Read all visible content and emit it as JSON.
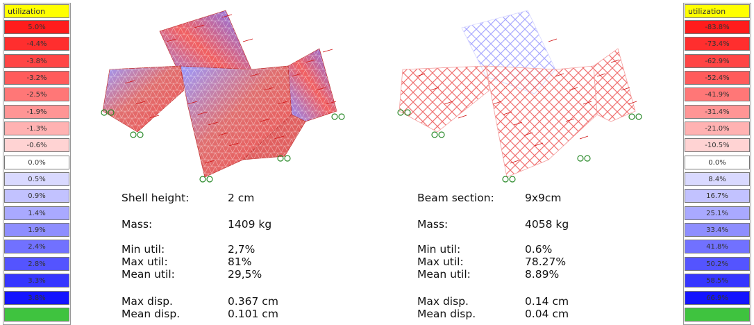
{
  "legend_left": {
    "title": "utilization",
    "cells": [
      {
        "label": "5.0%",
        "color": "#ff1c1c"
      },
      {
        "label": "-4.4%",
        "color": "#ff2e2e"
      },
      {
        "label": "-3.8%",
        "color": "#ff4545"
      },
      {
        "label": "-3.2%",
        "color": "#ff5b5b"
      },
      {
        "label": "-2.5%",
        "color": "#ff7777"
      },
      {
        "label": "-1.9%",
        "color": "#ff9595"
      },
      {
        "label": "-1.3%",
        "color": "#ffb2b2"
      },
      {
        "label": "-0.6%",
        "color": "#ffd3d3"
      },
      {
        "label": "0.0%",
        "color": "#ffffff"
      },
      {
        "label": "0.5%",
        "color": "#d9d9ff"
      },
      {
        "label": "0.9%",
        "color": "#c2c2ff"
      },
      {
        "label": "1.4%",
        "color": "#a9a9ff"
      },
      {
        "label": "1.9%",
        "color": "#8e8eff"
      },
      {
        "label": "2.4%",
        "color": "#7171ff"
      },
      {
        "label": "2.8%",
        "color": "#5454ff"
      },
      {
        "label": "3.3%",
        "color": "#3636ff"
      },
      {
        "label": "3.8%",
        "color": "#1414ff"
      },
      {
        "label": "",
        "color": "#3fc33f"
      }
    ]
  },
  "legend_right": {
    "title": "utilization",
    "cells": [
      {
        "label": "-83.8%",
        "color": "#ff1c1c"
      },
      {
        "label": "-73.4%",
        "color": "#ff2e2e"
      },
      {
        "label": "-62.9%",
        "color": "#ff4545"
      },
      {
        "label": "-52.4%",
        "color": "#ff5b5b"
      },
      {
        "label": "-41.9%",
        "color": "#ff7777"
      },
      {
        "label": "-31.4%",
        "color": "#ff9595"
      },
      {
        "label": "-21.0%",
        "color": "#ffb2b2"
      },
      {
        "label": "-10.5%",
        "color": "#ffd3d3"
      },
      {
        "label": "0.0%",
        "color": "#ffffff"
      },
      {
        "label": "8.4%",
        "color": "#d9d9ff"
      },
      {
        "label": "16.7%",
        "color": "#c2c2ff"
      },
      {
        "label": "25.1%",
        "color": "#a9a9ff"
      },
      {
        "label": "33.4%",
        "color": "#8e8eff"
      },
      {
        "label": "41.8%",
        "color": "#7171ff"
      },
      {
        "label": "50.2%",
        "color": "#5454ff"
      },
      {
        "label": "58.5%",
        "color": "#3636ff"
      },
      {
        "label": "66.9%",
        "color": "#1414ff"
      },
      {
        "label": "",
        "color": "#3fc33f"
      }
    ]
  },
  "shell_stats": {
    "height_label": "Shell height:",
    "height_value": "2 cm",
    "mass_label": "Mass:",
    "mass_value": "1409 kg",
    "min_util_label": "Min util:",
    "min_util_value": "2,7%",
    "max_util_label": "Max util:",
    "max_util_value": "81%",
    "mean_util_label": "Mean util:",
    "mean_util_value": "29,5%",
    "max_disp_label": "Max disp.",
    "max_disp_value": "0.367 cm",
    "mean_disp_label": "Mean disp.",
    "mean_disp_value": "0.101 cm"
  },
  "beam_stats": {
    "section_label": "Beam section:",
    "section_value": "9x9cm",
    "mass_label": "Mass:",
    "mass_value": "4058 kg",
    "min_util_label": "Min util:",
    "min_util_value": "0.6%",
    "max_util_label": "Max util:",
    "max_util_value": "78.27%",
    "mean_util_label": "Mean util:",
    "mean_util_value": "8.89%",
    "max_disp_label": "Max disp.",
    "max_disp_value": "0.14 cm",
    "mean_disp_label": "Mean disp.",
    "mean_disp_value": "0.04 cm"
  }
}
